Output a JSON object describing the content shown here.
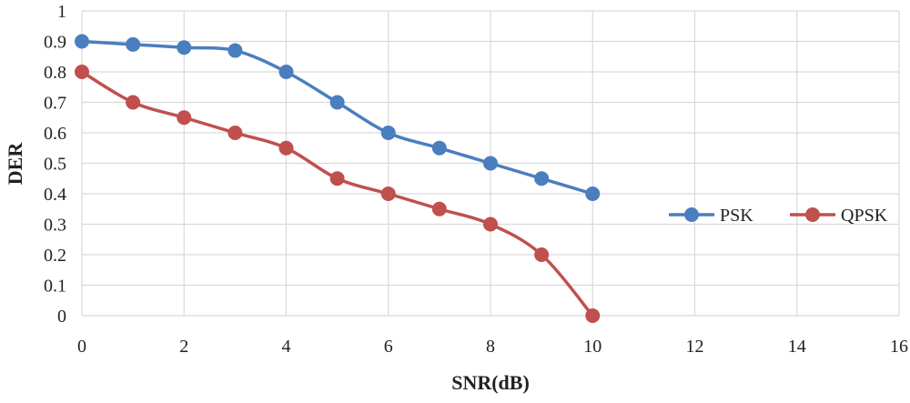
{
  "chart_data": {
    "type": "line",
    "xlabel": "SNR(dB)",
    "ylabel": "DER",
    "xlim": [
      0,
      16
    ],
    "ylim": [
      0,
      1
    ],
    "xticks": [
      0,
      2,
      4,
      6,
      8,
      10,
      12,
      14,
      16
    ],
    "yticks": [
      0,
      0.1,
      0.2,
      0.3,
      0.4,
      0.5,
      0.6,
      0.7,
      0.8,
      0.9,
      1
    ],
    "ytick_labels": [
      "0",
      "0.1",
      "0.2",
      "0.3",
      "0.4",
      "0.5",
      "0.6",
      "0.7",
      "0.8",
      "0.9",
      "1"
    ],
    "grid": true,
    "smooth": true,
    "legend_position": "right",
    "x": [
      0,
      1,
      2,
      3,
      4,
      5,
      6,
      7,
      8,
      9,
      10
    ],
    "series": [
      {
        "name": "PSK",
        "color": "#4a7ebf",
        "values": [
          0.9,
          0.89,
          0.88,
          0.87,
          0.8,
          0.7,
          0.6,
          0.55,
          0.5,
          0.45,
          0.4
        ]
      },
      {
        "name": "QPSK",
        "color": "#c0504d",
        "values": [
          0.8,
          0.7,
          0.65,
          0.6,
          0.55,
          0.45,
          0.4,
          0.35,
          0.3,
          0.2,
          0
        ]
      }
    ]
  }
}
